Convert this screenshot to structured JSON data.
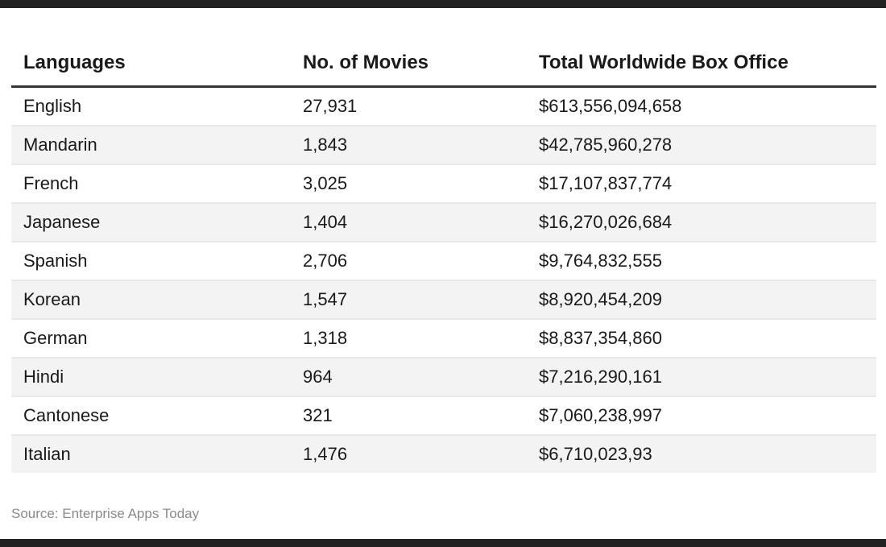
{
  "table": {
    "headers": [
      "Languages",
      "No. of Movies",
      "Total Worldwide Box Office"
    ],
    "rows": [
      [
        "English",
        "27,931",
        "$613,556,094,658"
      ],
      [
        "Mandarin",
        "1,843",
        "$42,785,960,278"
      ],
      [
        "French",
        "3,025",
        "$17,107,837,774"
      ],
      [
        "Japanese",
        "1,404",
        "$16,270,026,684"
      ],
      [
        "Spanish",
        "2,706",
        "$9,764,832,555"
      ],
      [
        "Korean",
        "1,547",
        "$8,920,454,209"
      ],
      [
        "German",
        "1,318",
        "$8,837,354,860"
      ],
      [
        "Hindi",
        "964",
        "$7,216,290,161"
      ],
      [
        "Cantonese",
        "321",
        "$7,060,238,997"
      ],
      [
        "Italian",
        "1,476",
        "$6,710,023,93"
      ]
    ]
  },
  "source": "Source: Enterprise Apps Today",
  "colors": {
    "header_rule": "#333333",
    "stripe": "#f3f3f3",
    "source_text": "#8a8a8a"
  }
}
